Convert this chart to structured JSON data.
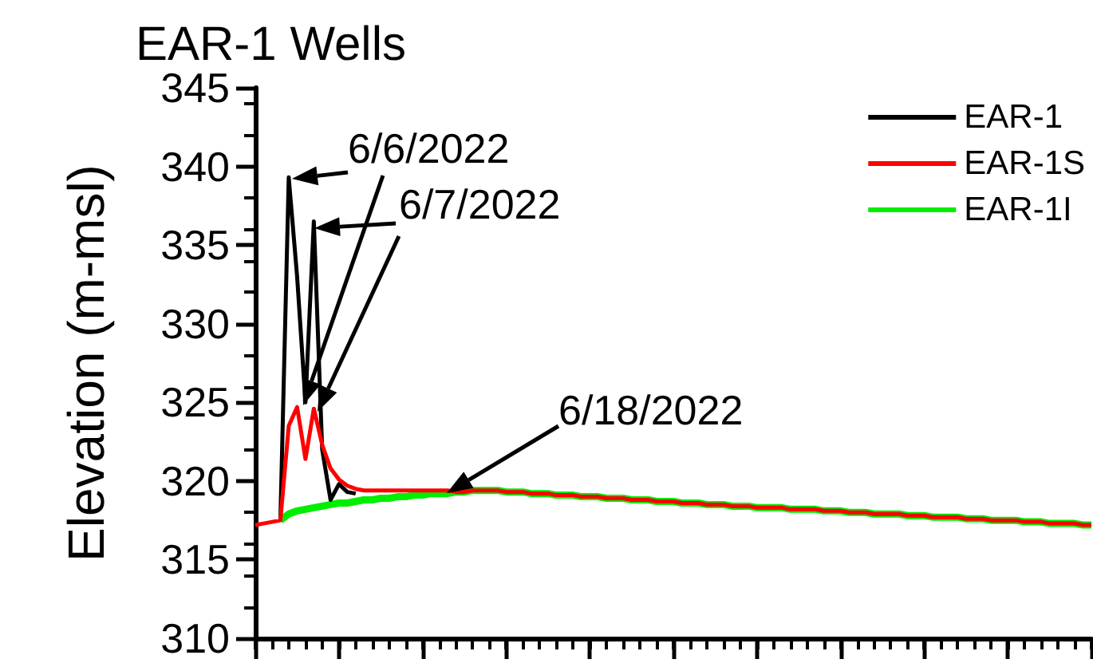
{
  "chart_data": {
    "type": "line",
    "title": "EAR-1 Wells",
    "ylabel": "Elevation (m-msl)",
    "categories": [
      null,
      null,
      null,
      null,
      null,
      null,
      null,
      null,
      null,
      null,
      null,
      null,
      null,
      null,
      null,
      null,
      null,
      null,
      null,
      null,
      null,
      null,
      null,
      null,
      null,
      null,
      null,
      null,
      null,
      null,
      null,
      null,
      null,
      null,
      null,
      null,
      null,
      null,
      null,
      null,
      null,
      null,
      null,
      null,
      null,
      null,
      null,
      null,
      null,
      null,
      null,
      null,
      null,
      null,
      null,
      null,
      null,
      null,
      null,
      null,
      null,
      null,
      null,
      null,
      null,
      null,
      null,
      null,
      null,
      null,
      null,
      null,
      null,
      null,
      null,
      null,
      null,
      null,
      null,
      null,
      null,
      null,
      null,
      null,
      null,
      null,
      null,
      null,
      null,
      null,
      null,
      null,
      null,
      null,
      null,
      null,
      null,
      null,
      null,
      null,
      null
    ],
    "series": [
      {
        "name": "EAR-1",
        "color": "#000000",
        "values": [
          null,
          null,
          null,
          317.5,
          339.3,
          333,
          325,
          336.5,
          322,
          318.8,
          319.8,
          319.3,
          319.2,
          null,
          null,
          null,
          null,
          null,
          null,
          null,
          null,
          null,
          null,
          null,
          null,
          null,
          null,
          null,
          null,
          null,
          null,
          null,
          null,
          null,
          null,
          null,
          null,
          null,
          null,
          null,
          null,
          null,
          null,
          null,
          null,
          null,
          null,
          null,
          null,
          null,
          null,
          null,
          null,
          null,
          null,
          null,
          null,
          null,
          null,
          null,
          null,
          null,
          null,
          null,
          null,
          null,
          null,
          null,
          null,
          null,
          null,
          null,
          null,
          null,
          null,
          null,
          null,
          null,
          null,
          null,
          null,
          null,
          null,
          null,
          null,
          null,
          null,
          null,
          null,
          null,
          null,
          null,
          null,
          null,
          null,
          null,
          null,
          null,
          null,
          null,
          null
        ]
      },
      {
        "name": "EAR-1S",
        "color": "#ff0000",
        "values": [
          317.2,
          317.3,
          317.4,
          317.5,
          323.5,
          324.7,
          321.4,
          324.6,
          322.3,
          320.8,
          320.1,
          319.7,
          319.5,
          319.4,
          319.4,
          319.4,
          319.4,
          319.4,
          319.4,
          319.4,
          319.4,
          319.4,
          319.4,
          319.4,
          319.3,
          319.3,
          319.4,
          319.4,
          319.4,
          319.4,
          319.3,
          319.3,
          319.3,
          319.2,
          319.2,
          319.2,
          319.1,
          319.1,
          319.1,
          319.0,
          319.0,
          319.0,
          318.9,
          318.9,
          318.9,
          318.8,
          318.8,
          318.8,
          318.7,
          318.7,
          318.7,
          318.6,
          318.6,
          318.6,
          318.5,
          318.5,
          318.5,
          318.4,
          318.4,
          318.4,
          318.3,
          318.3,
          318.3,
          318.3,
          318.2,
          318.2,
          318.2,
          318.2,
          318.1,
          318.1,
          318.1,
          318.0,
          318.0,
          318.0,
          317.9,
          317.9,
          317.9,
          317.9,
          317.8,
          317.8,
          317.8,
          317.7,
          317.7,
          317.7,
          317.7,
          317.6,
          317.6,
          317.6,
          317.5,
          317.5,
          317.5,
          317.5,
          317.4,
          317.4,
          317.4,
          317.3,
          317.3,
          317.3,
          317.3,
          317.2,
          317.2
        ]
      },
      {
        "name": "EAR-1I",
        "color": "#00ee00",
        "values": [
          null,
          null,
          null,
          317.5,
          317.9,
          318.1,
          318.2,
          318.3,
          318.4,
          318.5,
          318.6,
          318.6,
          318.7,
          318.8,
          318.8,
          318.9,
          318.9,
          319.0,
          319.0,
          319.1,
          319.1,
          319.2,
          319.2,
          319.2,
          319.3,
          319.3,
          319.4,
          319.4,
          319.4,
          319.4,
          319.3,
          319.3,
          319.3,
          319.2,
          319.2,
          319.2,
          319.1,
          319.1,
          319.1,
          319.0,
          319.0,
          319.0,
          318.9,
          318.9,
          318.9,
          318.8,
          318.8,
          318.8,
          318.7,
          318.7,
          318.7,
          318.6,
          318.6,
          318.6,
          318.5,
          318.5,
          318.5,
          318.4,
          318.4,
          318.4,
          318.3,
          318.3,
          318.3,
          318.3,
          318.2,
          318.2,
          318.2,
          318.2,
          318.1,
          318.1,
          318.1,
          318.0,
          318.0,
          318.0,
          317.9,
          317.9,
          317.9,
          317.9,
          317.8,
          317.8,
          317.8,
          317.7,
          317.7,
          317.7,
          317.7,
          317.6,
          317.6,
          317.6,
          317.5,
          317.5,
          317.5,
          317.5,
          317.4,
          317.4,
          317.4,
          317.3,
          317.3,
          317.3,
          317.3,
          317.2,
          317.2
        ]
      }
    ],
    "ylim": [
      310,
      345
    ],
    "yticks": [
      310,
      315,
      320,
      325,
      330,
      335,
      340,
      345
    ],
    "tick_labels": "y",
    "grid": false,
    "legend": "top right",
    "line_style": "solid",
    "annotations": [
      "6/6/2022",
      "6/7/2022",
      "6/18/2022"
    ]
  }
}
